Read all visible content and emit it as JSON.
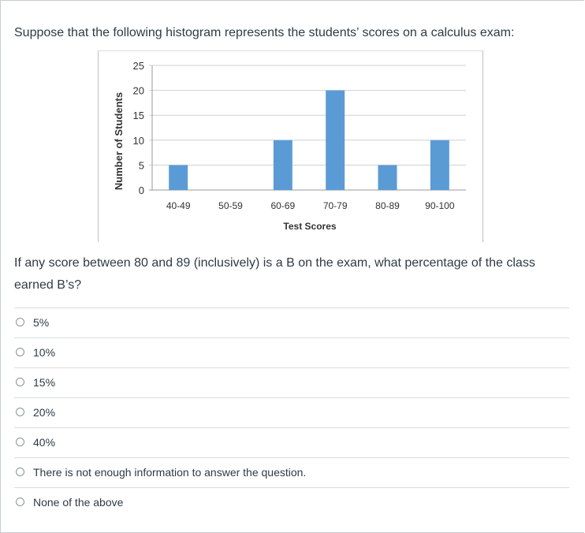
{
  "question": {
    "text": "Suppose that the following histogram represents the students’ scores on a calculus exam:",
    "prompt": "If any score between 80 and 89 (inclusively) is a B on the exam, what percentage of the class earned B’s?"
  },
  "chart_data": {
    "type": "bar",
    "categories": [
      "40-49",
      "50-59",
      "60-69",
      "70-79",
      "80-89",
      "90-100"
    ],
    "values": [
      5,
      0,
      10,
      20,
      5,
      10
    ],
    "xlabel": "Test Scores",
    "ylabel": "Number of Students",
    "ylim": [
      0,
      25
    ],
    "yticks": [
      "0",
      "5",
      "10",
      "15",
      "20",
      "25"
    ],
    "grid": true,
    "bar_color": "#5b9bd5"
  },
  "answers": [
    {
      "label": "5%"
    },
    {
      "label": "10%"
    },
    {
      "label": "15%"
    },
    {
      "label": "20%"
    },
    {
      "label": "40%"
    },
    {
      "label": "There is not enough information to answer the question."
    },
    {
      "label": "None of the above"
    }
  ]
}
